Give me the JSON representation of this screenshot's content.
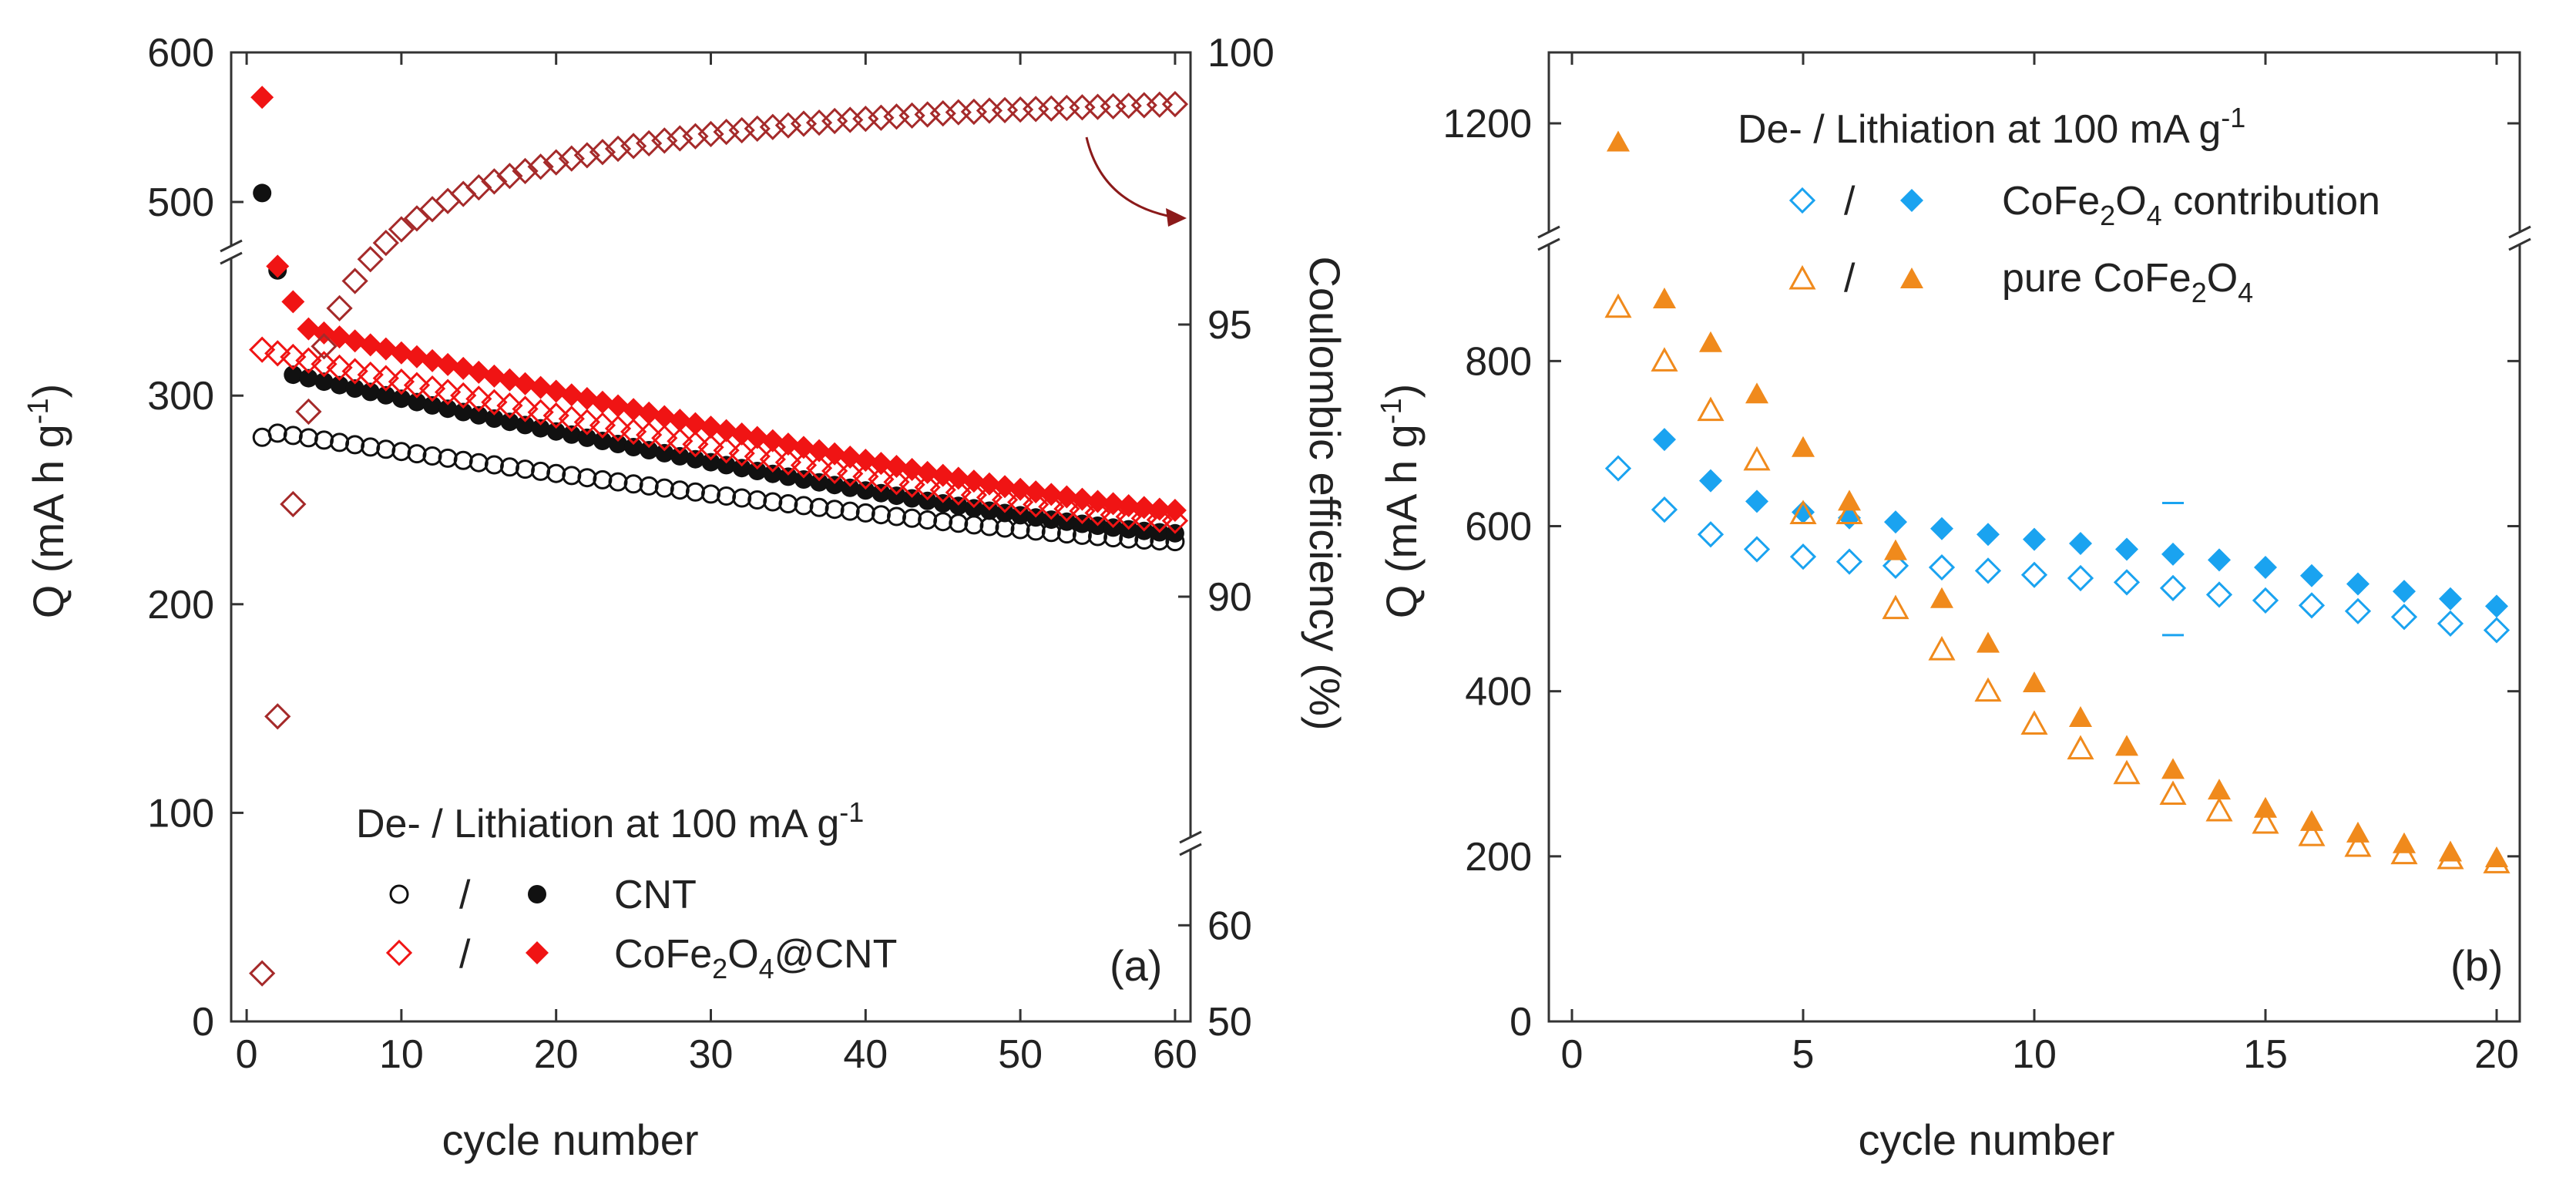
{
  "colors": {
    "red": "#f01414",
    "darkred": "#a52a2a",
    "black": "#111111",
    "blue": "#1aa3f0",
    "orange": "#f08a1c",
    "axis": "#333333"
  },
  "chart_data": [
    {
      "type": "scatter",
      "panel_label": "(a)",
      "xlabel": "cycle number",
      "ylabel": "Q (mA h g",
      "ylabel_sup": "-1",
      "ylabel_end": ")",
      "y2label": "Coulombic efficiency (%)",
      "xlim": [
        -1,
        61
      ],
      "x_ticks": [
        "0",
        "10",
        "20",
        "30",
        "40",
        "50",
        "60"
      ],
      "y_ticks": [
        "0",
        "100",
        "200",
        "300",
        "500",
        "600"
      ],
      "y2_ticks": [
        "50",
        "60",
        "90",
        "95",
        "100"
      ],
      "legend": {
        "title": "De- / Lithiation at 100 mA g",
        "title_sup": "-1",
        "slash": "/",
        "entries": [
          {
            "pre": "CNT",
            "sub": "",
            "post": "",
            "tail": ""
          },
          {
            "pre": "CoFe",
            "sub": "2",
            "post": "O",
            "sub2": "4",
            "tail": "@CNT"
          }
        ]
      },
      "series": [
        {
          "name": "CNT delithiation",
          "axis": "Q",
          "marker": "circle-open",
          "color": "black",
          "start": 2,
          "end": 60,
          "v0": 282,
          "v1": 230,
          "extra": [
            {
              "x": 1,
              "y": 280
            }
          ]
        },
        {
          "name": "CNT lithiation",
          "axis": "Q",
          "marker": "circle-filled",
          "color": "black",
          "start": 3,
          "end": 60,
          "v0": 310,
          "v1": 234,
          "extra": [
            {
              "x": 1,
              "y": 506
            },
            {
              "x": 2,
              "y": 360
            }
          ]
        },
        {
          "name": "CoFe2O4@CNT delithiation",
          "axis": "Q",
          "marker": "diamond-open",
          "color": "red",
          "start": 1,
          "end": 60,
          "v0": 322,
          "v1": 240
        },
        {
          "name": "CoFe2O4@CNT lithiation",
          "axis": "Q",
          "marker": "diamond-filled",
          "color": "red",
          "start": 4,
          "end": 60,
          "v0": 332,
          "v1": 245,
          "extra": [
            {
              "x": 1,
              "y": 570
            },
            {
              "x": 2,
              "y": 362
            },
            {
              "x": 3,
              "y": 345
            }
          ]
        },
        {
          "name": "Coulombic efficiency",
          "axis": "CE",
          "marker": "diamond-open",
          "color": "darkred",
          "points": [
            [
              1,
              55
            ],
            [
              2,
              87.8
            ],
            [
              3,
              91.7
            ],
            [
              4,
              93.4
            ],
            [
              5,
              94.6
            ],
            [
              6,
              95.3
            ],
            [
              7,
              95.8
            ],
            [
              8,
              96.2
            ],
            [
              9,
              96.5
            ],
            [
              10,
              96.75
            ],
            [
              11,
              96.95
            ],
            [
              12,
              97.12
            ],
            [
              13,
              97.27
            ],
            [
              14,
              97.4
            ],
            [
              15,
              97.52
            ],
            [
              16,
              97.63
            ],
            [
              17,
              97.73
            ],
            [
              18,
              97.82
            ],
            [
              19,
              97.9
            ],
            [
              20,
              97.98
            ],
            [
              21,
              98.05
            ],
            [
              22,
              98.11
            ],
            [
              23,
              98.17
            ],
            [
              24,
              98.23
            ],
            [
              25,
              98.28
            ],
            [
              26,
              98.33
            ],
            [
              27,
              98.38
            ],
            [
              28,
              98.42
            ],
            [
              29,
              98.46
            ],
            [
              30,
              98.5
            ],
            [
              31,
              98.54
            ],
            [
              32,
              98.57
            ],
            [
              33,
              98.6
            ],
            [
              34,
              98.63
            ],
            [
              35,
              98.66
            ],
            [
              36,
              98.69
            ],
            [
              37,
              98.71
            ],
            [
              38,
              98.74
            ],
            [
              39,
              98.76
            ],
            [
              40,
              98.78
            ],
            [
              41,
              98.8
            ],
            [
              42,
              98.82
            ],
            [
              43,
              98.84
            ],
            [
              44,
              98.86
            ],
            [
              45,
              98.88
            ],
            [
              46,
              98.9
            ],
            [
              47,
              98.91
            ],
            [
              48,
              98.93
            ],
            [
              49,
              98.94
            ],
            [
              50,
              98.95
            ],
            [
              51,
              98.96
            ],
            [
              52,
              98.97
            ],
            [
              53,
              98.98
            ],
            [
              54,
              98.99
            ],
            [
              55,
              99.0
            ],
            [
              56,
              99.01
            ],
            [
              57,
              99.02
            ],
            [
              58,
              99.03
            ],
            [
              59,
              99.04
            ],
            [
              60,
              99.05
            ]
          ]
        }
      ]
    },
    {
      "type": "scatter",
      "panel_label": "(b)",
      "xlabel": "cycle number",
      "ylabel": "Q (mA h g",
      "ylabel_sup": "-1",
      "ylabel_end": ")",
      "xlim": [
        -0.5,
        20.5
      ],
      "x_ticks": [
        "0",
        "5",
        "10",
        "15",
        "20"
      ],
      "y_ticks": [
        "0",
        "200",
        "400",
        "600",
        "800",
        "1200"
      ],
      "legend": {
        "title": "De- / Lithiation at 100 mA g",
        "title_sup": "-1",
        "slash": "/",
        "entries": [
          {
            "pre": "CoFe",
            "sub": "2",
            "post": "O",
            "sub2": "4",
            "tail": " contribution"
          },
          {
            "pre": "pure CoFe",
            "sub": "2",
            "post": "O",
            "sub2": "4",
            "tail": ""
          }
        ]
      },
      "series": [
        {
          "name": "CoFe2O4 contribution delithiation",
          "marker": "diamond-open",
          "color": "blue",
          "points": [
            [
              1,
              670
            ],
            [
              2,
              620
            ],
            [
              3,
              590
            ],
            [
              4,
              572
            ],
            [
              5,
              563
            ],
            [
              6,
              557
            ],
            [
              7,
              552
            ],
            [
              8,
              550
            ],
            [
              9,
              546
            ],
            [
              10,
              541
            ],
            [
              11,
              537
            ],
            [
              12,
              532
            ],
            [
              13,
              525
            ],
            [
              14,
              517
            ],
            [
              15,
              510
            ],
            [
              16,
              504
            ],
            [
              17,
              497
            ],
            [
              18,
              490
            ],
            [
              19,
              482
            ],
            [
              20,
              474
            ]
          ]
        },
        {
          "name": "CoFe2O4 contribution lithiation",
          "marker": "diamond-filled",
          "color": "blue",
          "points": [
            [
              2,
              705
            ],
            [
              3,
              655
            ],
            [
              4,
              630
            ],
            [
              5,
              617
            ],
            [
              6,
              610
            ],
            [
              7,
              605
            ],
            [
              8,
              597
            ],
            [
              9,
              590
            ],
            [
              10,
              584
            ],
            [
              11,
              579
            ],
            [
              12,
              572
            ],
            [
              13,
              566
            ],
            [
              14,
              559
            ],
            [
              15,
              550
            ],
            [
              16,
              540
            ],
            [
              17,
              530
            ],
            [
              18,
              521
            ],
            [
              19,
              512
            ],
            [
              20,
              503
            ]
          ]
        },
        {
          "name": "pure CoFe2O4 delithiation",
          "marker": "triangle-open",
          "color": "orange",
          "points": [
            [
              1,
              865
            ],
            [
              2,
              800
            ],
            [
              3,
              740
            ],
            [
              4,
              680
            ],
            [
              5,
              615
            ],
            [
              6,
              615
            ],
            [
              7,
              500
            ],
            [
              8,
              450
            ],
            [
              9,
              400
            ],
            [
              10,
              360
            ],
            [
              11,
              330
            ],
            [
              12,
              300
            ],
            [
              13,
              275
            ],
            [
              14,
              255
            ],
            [
              15,
              240
            ],
            [
              16,
              225
            ],
            [
              17,
              212
            ],
            [
              18,
              203
            ],
            [
              19,
              197
            ],
            [
              20,
              192
            ]
          ]
        },
        {
          "name": "pure CoFe2O4 lithiation",
          "marker": "triangle-filled",
          "color": "orange",
          "points": [
            [
              1,
              1160
            ],
            [
              2,
              875
            ],
            [
              3,
              822
            ],
            [
              4,
              760
            ],
            [
              5,
              695
            ],
            [
              6,
              630
            ],
            [
              7,
              570
            ],
            [
              8,
              512
            ],
            [
              9,
              458
            ],
            [
              10,
              410
            ],
            [
              11,
              368
            ],
            [
              12,
              333
            ],
            [
              13,
              305
            ],
            [
              14,
              280
            ],
            [
              15,
              258
            ],
            [
              16,
              242
            ],
            [
              17,
              228
            ],
            [
              18,
              215
            ],
            [
              19,
              205
            ],
            [
              20,
              198
            ]
          ]
        }
      ]
    }
  ]
}
